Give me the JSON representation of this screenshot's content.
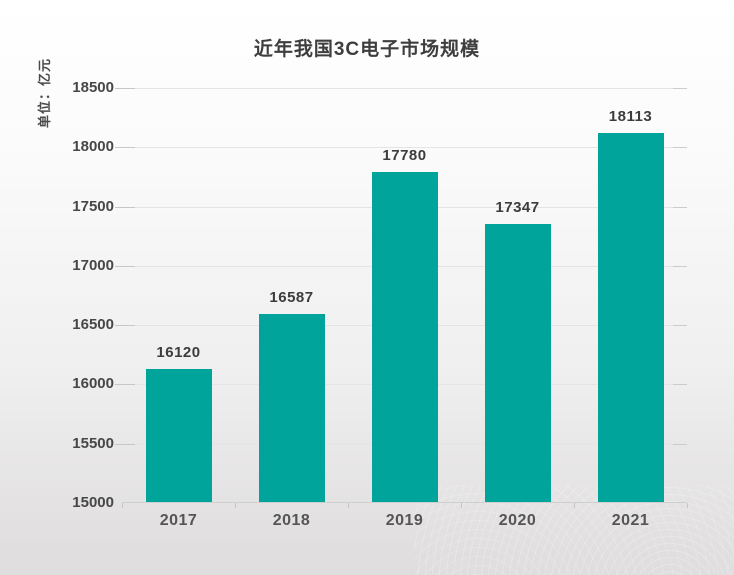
{
  "chart": {
    "title": "近年我国3C电子市场规模",
    "unit_label": "单位：亿元"
  },
  "chart_data": {
    "type": "bar",
    "title": "近年我国3C电子市场规模",
    "xlabel": "",
    "ylabel": "单位：亿元",
    "categories": [
      "2017",
      "2018",
      "2019",
      "2020",
      "2021"
    ],
    "values": [
      16120,
      16587,
      17780,
      17347,
      18113
    ],
    "data_labels": [
      "16120",
      "16587",
      "17780",
      "17347",
      "18113"
    ],
    "ylim": [
      15000,
      18500
    ],
    "yticks": [
      15000,
      15500,
      16000,
      16500,
      17000,
      17500,
      18000,
      18500
    ],
    "grid": true,
    "legend": "none",
    "bar_color": "#00a49a"
  },
  "colors": {
    "bar": "#00a49a",
    "title_text": "#3e3e3e",
    "axis_text": "#474747",
    "gridline": "#e4e4e4",
    "background_top": "#ffffff",
    "background_bottom": "#dfdddd"
  }
}
